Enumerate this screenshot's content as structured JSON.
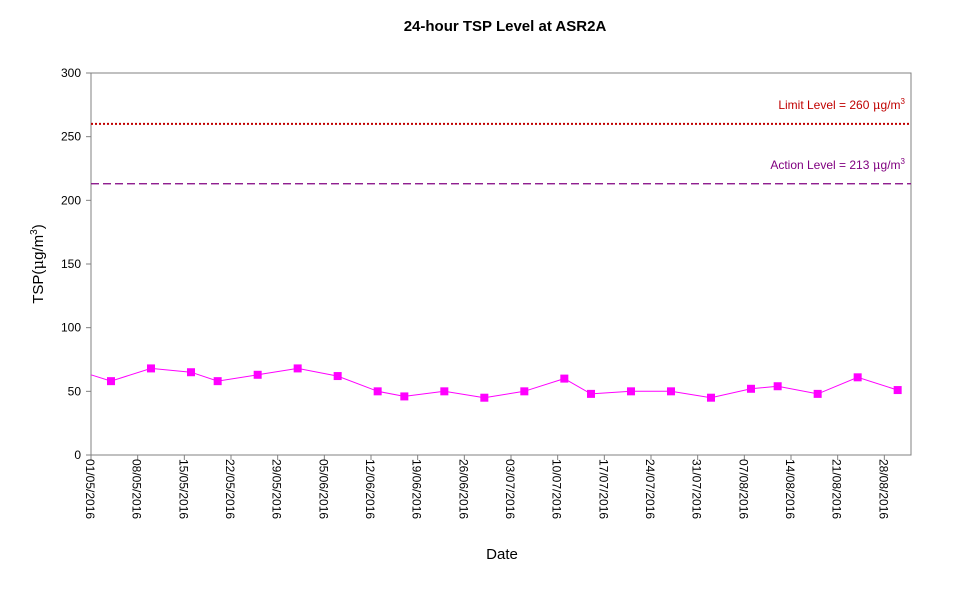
{
  "chart_data": {
    "type": "line",
    "title": "24-hour TSP Level at ASR2A",
    "xlabel": "Date",
    "ylabel_main": "TSP(",
    "ylabel_unit_mu": "μ",
    "ylabel_unit_g": "g/m",
    "ylabel_unit_sup": "3",
    "ylabel_close": ")",
    "ylim": [
      0,
      300
    ],
    "yticks": [
      "0",
      "50",
      "100",
      "150",
      "200",
      "250",
      "300"
    ],
    "xlim": [
      "2016-05-01",
      "2016-08-31"
    ],
    "xticks": [
      "01/05/2016",
      "08/05/2016",
      "15/05/2016",
      "22/05/2016",
      "29/05/2016",
      "05/06/2016",
      "12/06/2016",
      "19/06/2016",
      "26/06/2016",
      "03/07/2016",
      "10/07/2016",
      "17/07/2016",
      "24/07/2016",
      "31/07/2016",
      "07/08/2016",
      "14/08/2016",
      "21/08/2016",
      "28/08/2016"
    ],
    "grid": false,
    "series": [
      {
        "color": "#ff00ff",
        "marker": "square",
        "x": [
          "2016-05-04",
          "2016-05-10",
          "2016-05-16",
          "2016-05-20",
          "2016-05-26",
          "2016-06-01",
          "2016-06-07",
          "2016-06-13",
          "2016-06-17",
          "2016-06-23",
          "2016-06-29",
          "2016-07-05",
          "2016-07-11",
          "2016-07-15",
          "2016-07-21",
          "2016-07-27",
          "2016-08-02",
          "2016-08-08",
          "2016-08-12",
          "2016-08-18",
          "2016-08-24",
          "2016-08-30"
        ],
        "y": [
          58,
          68,
          65,
          58,
          63,
          68,
          62,
          50,
          46,
          50,
          45,
          50,
          60,
          48,
          50,
          50,
          45,
          52,
          54,
          48,
          61,
          51
        ],
        "start_value": 63
      }
    ],
    "reference_lines": [
      {
        "value": 260,
        "label_main": "Limit Level  = 260 ",
        "label_mu": "μ",
        "label_g": "g/m",
        "label_sup": "3",
        "color": "#c00000",
        "style": "dotted"
      },
      {
        "value": 213,
        "label_main": "Action Level  = 213 ",
        "label_mu": "μ",
        "label_g": "g/m",
        "label_sup": "3",
        "color": "#800080",
        "style": "dashed"
      }
    ]
  }
}
